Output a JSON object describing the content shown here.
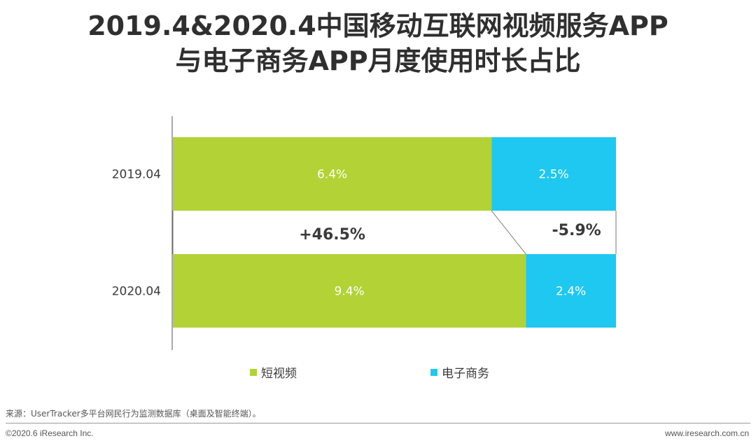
{
  "title": {
    "line1": "2019.4&2020.4中国移动互联网视频服务APP",
    "line2": "与电子商务APP月度使用时长占比"
  },
  "chart_data": {
    "type": "bar",
    "orientation": "horizontal",
    "stacked": true,
    "normalized_to_100": true,
    "categories": [
      "2019.04",
      "2020.04"
    ],
    "series": [
      {
        "name": "短视频",
        "values": [
          6.4,
          9.4
        ],
        "labels": [
          "6.4%",
          "9.4%"
        ],
        "color": "#b2d235"
      },
      {
        "name": "电子商务",
        "values": [
          2.5,
          2.4
        ],
        "labels": [
          "2.5%",
          "2.4%"
        ],
        "color": "#1ec8f0"
      }
    ],
    "changes": [
      {
        "series": "短视频",
        "label": "+46.5%"
      },
      {
        "series": "电子商务",
        "label": "-5.9%"
      }
    ],
    "legend_position": "bottom",
    "grid": false
  },
  "source": "来源：UserTracker多平台网民行为监测数据库（桌面及智能终端）。",
  "copyright": "©2020.6 iResearch Inc.",
  "website": "www.iresearch.com.cn"
}
